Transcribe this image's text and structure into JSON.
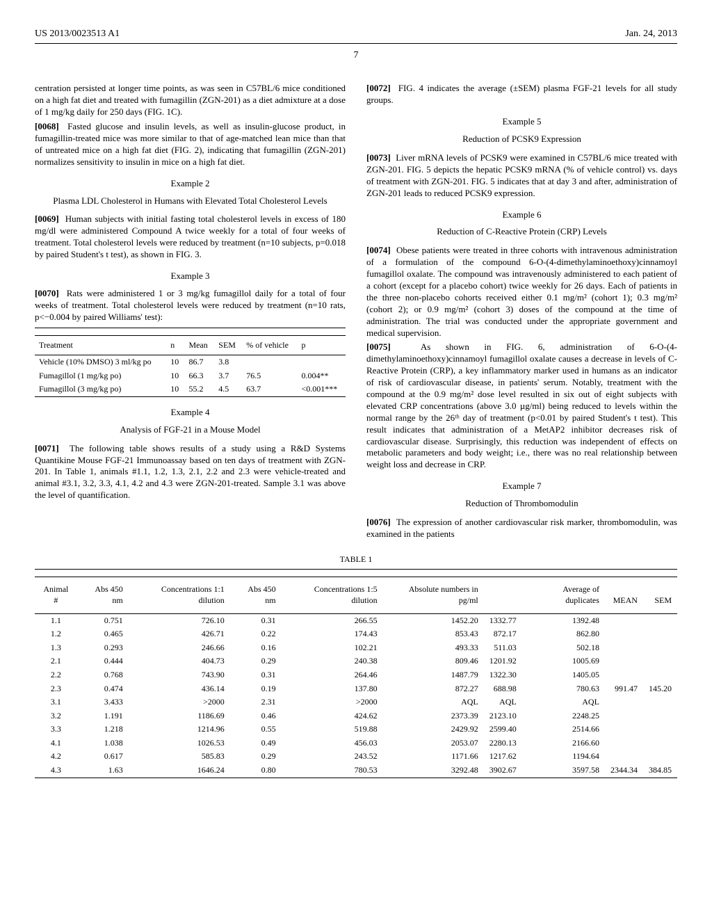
{
  "header": {
    "pub_number": "US 2013/0023513 A1",
    "pub_date": "Jan. 24, 2013",
    "page_number": "7"
  },
  "left_col": {
    "p1": "centration persisted at longer time points, as was seen in C57BL/6 mice conditioned on a high fat diet and treated with fumagillin (ZGN-201) as a diet admixture at a dose of 1 mg/kg daily for 250 days (FIG. 1C).",
    "p0068_num": "[0068]",
    "p0068": "Fasted glucose and insulin levels, as well as insulin-glucose product, in fumagillin-treated mice was more similar to that of age-matched lean mice than that of untreated mice on a high fat diet (FIG. 2), indicating that fumagillin (ZGN-201) normalizes sensitivity to insulin in mice on a high fat diet.",
    "ex2_h": "Example 2",
    "ex2_sub": "Plasma LDL Cholesterol in Humans with Elevated Total Cholesterol Levels",
    "p0069_num": "[0069]",
    "p0069": "Human subjects with initial fasting total cholesterol levels in excess of 180 mg/dl were administered Compound A twice weekly for a total of four weeks of treatment. Total cholesterol levels were reduced by treatment (n=10 subjects, p=0.018 by paired Student's t test), as shown in FIG. 3.",
    "ex3_h": "Example 3",
    "p0070_num": "[0070]",
    "p0070": "Rats were administered 1 or 3 mg/kg fumagillol daily for a total of four weeks of treatment. Total cholesterol levels were reduced by treatment (n=10 rats, p<−0.004 by paired Williams' test):",
    "small_table": {
      "headers": [
        "Treatment",
        "n",
        "Mean",
        "SEM",
        "% of vehicle",
        "p"
      ],
      "rows": [
        [
          "Vehicle (10% DMSO) 3 ml/kg po",
          "10",
          "86.7",
          "3.8",
          "",
          ""
        ],
        [
          "Fumagillol (1 mg/kg po)",
          "10",
          "66.3",
          "3.7",
          "76.5",
          "0.004**"
        ],
        [
          "Fumagillol (3 mg/kg po)",
          "10",
          "55.2",
          "4.5",
          "63.7",
          "<0.001***"
        ]
      ]
    },
    "ex4_h": "Example 4",
    "ex4_sub": "Analysis of FGF-21 in a Mouse Model",
    "p0071_num": "[0071]",
    "p0071": "The following table shows results of a study using a R&D Systems Quantikine Mouse FGF-21 Immunoassay based on ten days of treatment with ZGN-201. In Table 1, animals #1.1, 1.2, 1.3, 2.1, 2.2 and 2.3 were vehicle-treated and animal #3.1, 3.2, 3.3, 4.1, 4.2 and 4.3 were ZGN-201-treated. Sample 3.1 was above the level of quantification."
  },
  "right_col": {
    "p0072_num": "[0072]",
    "p0072": "FIG. 4 indicates the average (±SEM) plasma FGF-21 levels for all study groups.",
    "ex5_h": "Example 5",
    "ex5_sub": "Reduction of PCSK9 Expression",
    "p0073_num": "[0073]",
    "p0073": "Liver mRNA levels of PCSK9 were examined in C57BL/6 mice treated with ZGN-201. FIG. 5 depicts the hepatic PCSK9 mRNA (% of vehicle control) vs. days of treatment with ZGN-201. FIG. 5 indicates that at day 3 and after, administration of ZGN-201 leads to reduced PCSK9 expression.",
    "ex6_h": "Example 6",
    "ex6_sub": "Reduction of C-Reactive Protein (CRP) Levels",
    "p0074_num": "[0074]",
    "p0074": "Obese patients were treated in three cohorts with intravenous administration of a formulation of the compound 6-O-(4-dimethylaminoethoxy)cinnamoyl fumagillol oxalate. The compound was intravenously administered to each patient of a cohort (except for a placebo cohort) twice weekly for 26 days. Each of patients in the three non-placebo cohorts received either 0.1 mg/m² (cohort 1); 0.3 mg/m² (cohort 2); or 0.9 mg/m² (cohort 3) doses of the compound at the time of administration. The trial was conducted under the appropriate government and medical supervision.",
    "p0075_num": "[0075]",
    "p0075": "As shown in FIG. 6, administration of 6-O-(4-dimethylaminoethoxy)cinnamoyl fumagillol oxalate causes a decrease in levels of C-Reactive Protein (CRP), a key inflammatory marker used in humans as an indicator of risk of cardiovascular disease, in patients' serum. Notably, treatment with the compound at the 0.9 mg/m² dose level resulted in six out of eight subjects with elevated CRP concentrations (above 3.0 µg/ml) being reduced to levels within the normal range by the 26ᵗʰ day of treatment (p<0.01 by paired Student's t test). This result indicates that administration of a MetAP2 inhibitor decreases risk of cardiovascular disease. Surprisingly, this reduction was independent of effects on metabolic parameters and body weight; i.e., there was no real relationship between weight loss and decrease in CRP.",
    "ex7_h": "Example 7",
    "ex7_sub": "Reduction of Thrombomodulin",
    "p0076_num": "[0076]",
    "p0076": "The expression of another cardiovascular risk marker, thrombomodulin, was examined in the patients"
  },
  "table1": {
    "caption": "TABLE 1",
    "headers": [
      "Animal #",
      "Abs 450 nm",
      "Concentrations 1:1 dilution",
      "Abs 450 nm",
      "Concentrations 1:5 dilution",
      "Absolute numbers in pg/ml",
      "",
      "Average of duplicates",
      "MEAN",
      "SEM"
    ],
    "rows": [
      [
        "1.1",
        "0.751",
        "726.10",
        "0.31",
        "266.55",
        "1452.20",
        "1332.77",
        "1392.48",
        "",
        ""
      ],
      [
        "1.2",
        "0.465",
        "426.71",
        "0.22",
        "174.43",
        "853.43",
        "872.17",
        "862.80",
        "",
        ""
      ],
      [
        "1.3",
        "0.293",
        "246.66",
        "0.16",
        "102.21",
        "493.33",
        "511.03",
        "502.18",
        "",
        ""
      ],
      [
        "2.1",
        "0.444",
        "404.73",
        "0.29",
        "240.38",
        "809.46",
        "1201.92",
        "1005.69",
        "",
        ""
      ],
      [
        "2.2",
        "0.768",
        "743.90",
        "0.31",
        "264.46",
        "1487.79",
        "1322.30",
        "1405.05",
        "",
        ""
      ],
      [
        "2.3",
        "0.474",
        "436.14",
        "0.19",
        "137.80",
        "872.27",
        "688.98",
        "780.63",
        "991.47",
        "145.20"
      ],
      [
        "3.1",
        "3.433",
        ">2000",
        "2.31",
        ">2000",
        "AQL",
        "AQL",
        "AQL",
        "",
        ""
      ],
      [
        "3.2",
        "1.191",
        "1186.69",
        "0.46",
        "424.62",
        "2373.39",
        "2123.10",
        "2248.25",
        "",
        ""
      ],
      [
        "3.3",
        "1.218",
        "1214.96",
        "0.55",
        "519.88",
        "2429.92",
        "2599.40",
        "2514.66",
        "",
        ""
      ],
      [
        "4.1",
        "1.038",
        "1026.53",
        "0.49",
        "456.03",
        "2053.07",
        "2280.13",
        "2166.60",
        "",
        ""
      ],
      [
        "4.2",
        "0.617",
        "585.83",
        "0.29",
        "243.52",
        "1171.66",
        "1217.62",
        "1194.64",
        "",
        ""
      ],
      [
        "4.3",
        "1.63",
        "1646.24",
        "0.80",
        "780.53",
        "3292.48",
        "3902.67",
        "3597.58",
        "2344.34",
        "384.85"
      ]
    ]
  }
}
